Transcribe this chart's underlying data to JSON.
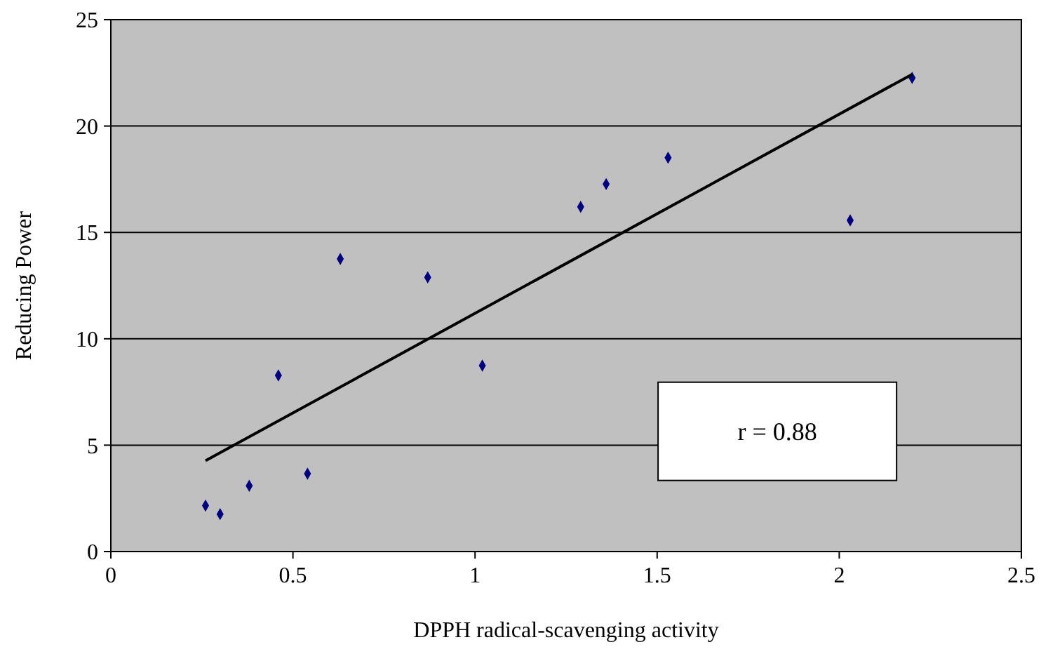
{
  "chart_data": {
    "type": "scatter",
    "xlabel": "DPPH radical-scavenging activity",
    "ylabel": "Reducing Power",
    "xlim": [
      0,
      2.5
    ],
    "ylim": [
      0,
      25
    ],
    "xticks": [
      0,
      0.5,
      1,
      1.5,
      2,
      2.5
    ],
    "yticks": [
      0,
      5,
      10,
      15,
      20,
      25
    ],
    "grid": "y",
    "marker": "diamond",
    "annotations": [
      "r = 0.88"
    ],
    "series": [
      {
        "color": "#000080",
        "x": [
          0.26,
          0.3,
          0.38,
          0.46,
          0.54,
          0.63,
          0.87,
          1.02,
          1.29,
          1.36,
          1.53,
          2.03,
          2.2
        ],
        "values": [
          2.16,
          1.76,
          3.09,
          8.28,
          3.66,
          13.75,
          12.89,
          8.74,
          16.2,
          17.27,
          18.51,
          15.57,
          22.26
        ]
      },
      {
        "type": "line",
        "color": "#000000",
        "x": [
          0.26,
          2.2
        ],
        "values": [
          4.27,
          22.43
        ],
        "marker": "none"
      }
    ]
  }
}
